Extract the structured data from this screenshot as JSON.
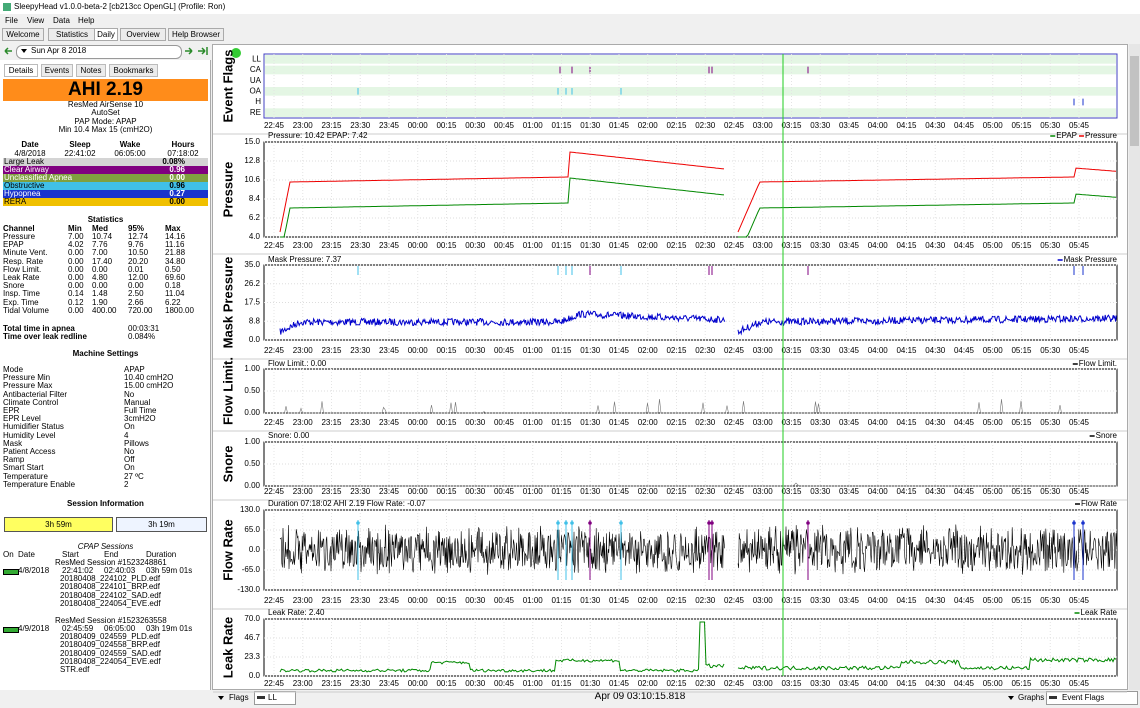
{
  "window": {
    "title": "SleepyHead v1.0.0-beta-2 [cb213cc OpenGL] (Profile: Ron)"
  },
  "menu": [
    "File",
    "View",
    "Data",
    "Help"
  ],
  "tabs": [
    "Welcome",
    "Statistics",
    "Daily",
    "Overview",
    "Help Browser"
  ],
  "date": "Sun Apr 8 2018",
  "side_tabs": [
    "Details",
    "Events",
    "Notes",
    "Bookmarks"
  ],
  "ahi": "AHI 2.19",
  "device": [
    "ResMed AirSense 10",
    "AutoSet",
    "PAP Mode: APAP",
    "Min 10.4 Max 15 (cmH2O)"
  ],
  "sleep": {
    "headers": [
      "Date",
      "Sleep",
      "Wake",
      "Hours"
    ],
    "values": [
      "4/8/2018",
      "22:41:02",
      "06:05:00",
      "07:18:02"
    ]
  },
  "indices": [
    {
      "name": "Large Leak",
      "value": "0.08%"
    },
    {
      "name": "Clear Airway",
      "value": "0.96"
    },
    {
      "name": "Unclassified Apnea",
      "value": "0.00"
    },
    {
      "name": "Obstructive",
      "value": "0.96"
    },
    {
      "name": "Hypopnea",
      "value": "0.27"
    },
    {
      "name": "RERA",
      "value": "0.00"
    }
  ],
  "statistics": {
    "title": "Statistics",
    "headers": [
      "Channel",
      "Min",
      "Med",
      "95%",
      "Max"
    ],
    "rows": [
      [
        "Pressure",
        "7.00",
        "10.74",
        "12.74",
        "14.16"
      ],
      [
        "EPAP",
        "4.02",
        "7.76",
        "9.76",
        "11.16"
      ],
      [
        "Minute Vent.",
        "0.00",
        "7.00",
        "10.50",
        "21.88"
      ],
      [
        "Resp. Rate",
        "0.00",
        "17.40",
        "20.20",
        "34.80"
      ],
      [
        "Flow Limit.",
        "0.00",
        "0.00",
        "0.01",
        "0.50"
      ],
      [
        "Leak Rate",
        "0.00",
        "4.80",
        "12.00",
        "69.60"
      ],
      [
        "Snore",
        "0.00",
        "0.00",
        "0.00",
        "0.18"
      ],
      [
        "Insp. Time",
        "0.14",
        "1.48",
        "2.50",
        "11.04"
      ],
      [
        "Exp. Time",
        "0.12",
        "1.90",
        "2.66",
        "6.22"
      ],
      [
        "Tidal Volume",
        "0.00",
        "400.00",
        "720.00",
        "1800.00"
      ]
    ]
  },
  "totals": [
    [
      "Total time in apnea",
      "00:03:31"
    ],
    [
      "Time over leak redline",
      "0.084%"
    ]
  ],
  "machine_settings": {
    "title": "Machine Settings",
    "rows": [
      [
        "Mode",
        "APAP"
      ],
      [
        "Pressure Min",
        "10.40 cmH2O"
      ],
      [
        "Pressure Max",
        "15.00 cmH2O"
      ],
      [
        "Antibacterial Filter",
        "No"
      ],
      [
        "Climate Control",
        "Manual"
      ],
      [
        "EPR",
        "Full Time"
      ],
      [
        "EPR Level",
        "3cmH2O"
      ],
      [
        "Humidifier Status",
        "On"
      ],
      [
        "Humidity Level",
        "4"
      ],
      [
        "Mask",
        "Pillows"
      ],
      [
        "Patient Access",
        "No"
      ],
      [
        "Ramp",
        "Off"
      ],
      [
        "Smart Start",
        "On"
      ],
      [
        "Temperature",
        "27 ºC"
      ],
      [
        "Temperature Enable",
        "2"
      ]
    ]
  },
  "session_info": {
    "title": "Session Information",
    "bars": [
      "3h 59m",
      "3h 19m"
    ],
    "list_title": "CPAP Sessions",
    "headers": [
      "On",
      "Date",
      "Start",
      "End",
      "Duration"
    ],
    "sessions": [
      {
        "name": "ResMed Session #1523248861",
        "date": "4/8/2018",
        "start": "22:41:02",
        "end": "02:40:03",
        "duration": "03h 59m 01s",
        "files": [
          "20180408_224102_PLD.edf",
          "20180408_224101_BRP.edf",
          "20180408_224102_SAD.edf",
          "20180408_224054_EVE.edf"
        ]
      },
      {
        "name": "ResMed Session #1523263558",
        "date": "4/9/2018",
        "start": "02:45:59",
        "end": "06:05:00",
        "duration": "03h 19m 01s",
        "files": [
          "20180409_024559_PLD.edf",
          "20180409_024558_BRP.edf",
          "20180409_024559_SAD.edf",
          "20180408_224054_EVE.edf",
          "STR.edf"
        ]
      }
    ]
  },
  "graphs": [
    {
      "label": "Event Flags",
      "rows": [
        "LL",
        "CA",
        "UA",
        "OA",
        "H",
        "RE"
      ]
    },
    {
      "label": "Pressure",
      "header": "Pressure: 10.42 EPAP: 7.42",
      "legend": [
        "EPAP",
        "Pressure"
      ],
      "yticks": [
        "15.0",
        "12.8",
        "10.6",
        "8.4",
        "6.2",
        "4.0"
      ]
    },
    {
      "label": "Mask Pressure",
      "header": "Mask Pressure: 7.37",
      "legend": [
        "Mask Pressure"
      ],
      "yticks": [
        "35.0",
        "26.2",
        "17.5",
        "8.8",
        "0.0"
      ]
    },
    {
      "label": "Flow Limit.",
      "header": "Flow Limit.: 0.00",
      "legend": [
        "Flow Limit."
      ],
      "yticks": [
        "1.00",
        "0.50",
        "0.00"
      ]
    },
    {
      "label": "Snore",
      "header": "Snore: 0.00",
      "legend": [
        "Snore"
      ],
      "yticks": [
        "1.00",
        "0.50",
        "0.00"
      ]
    },
    {
      "label": "Flow Rate",
      "header": "Duration 07:18:02 AHI 2.19 Flow Rate: -0.07",
      "legend": [
        "Flow Rate"
      ],
      "yticks": [
        "130.0",
        "65.0",
        "0.0",
        "-65.0",
        "-130.0"
      ]
    },
    {
      "label": "Leak Rate",
      "header": "Leak Rate: 2.40",
      "legend": [
        "Leak Rate"
      ],
      "yticks": [
        "70.0",
        "46.7",
        "23.3",
        "0.0"
      ]
    }
  ],
  "xticks": [
    "22:45",
    "23:00",
    "23:15",
    "23:30",
    "23:45",
    "00:00",
    "00:15",
    "00:30",
    "00:45",
    "01:00",
    "01:15",
    "01:30",
    "01:45",
    "02:00",
    "02:15",
    "02:30",
    "02:45",
    "03:00",
    "03:15",
    "03:30",
    "03:45",
    "04:00",
    "04:15",
    "04:30",
    "04:45",
    "05:00",
    "05:15",
    "05:30",
    "05:45"
  ],
  "bottom": {
    "flags": "Flags",
    "flag_value": "LL",
    "time": "Apr 09 03:10:15.818",
    "graphs": "Graphs",
    "graph_value": "Event Flags"
  }
}
